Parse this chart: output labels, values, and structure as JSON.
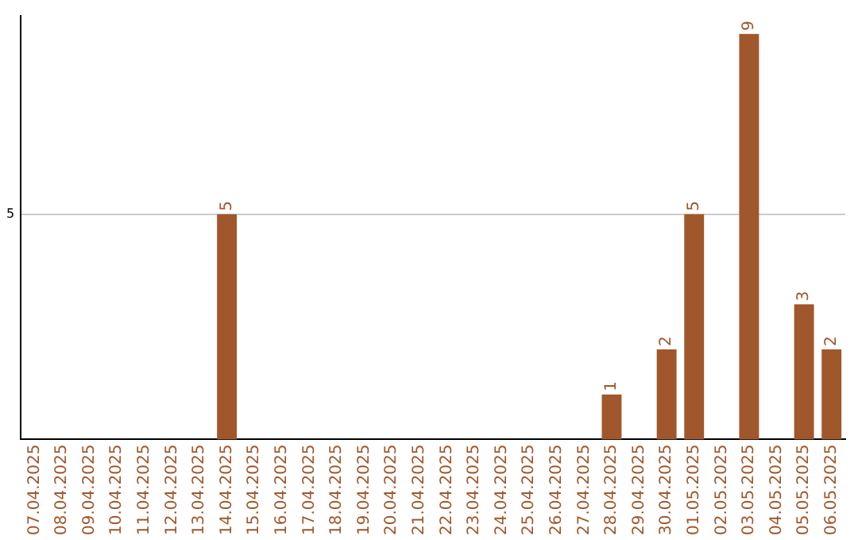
{
  "chart_data": {
    "type": "bar",
    "categories": [
      "07.04.2025",
      "08.04.2025",
      "09.04.2025",
      "10.04.2025",
      "11.04.2025",
      "12.04.2025",
      "13.04.2025",
      "14.04.2025",
      "15.04.2025",
      "16.04.2025",
      "17.04.2025",
      "18.04.2025",
      "19.04.2025",
      "20.04.2025",
      "21.04.2025",
      "22.04.2025",
      "23.04.2025",
      "24.04.2025",
      "25.04.2025",
      "26.04.2025",
      "27.04.2025",
      "28.04.2025",
      "29.04.2025",
      "30.04.2025",
      "01.05.2025",
      "02.05.2025",
      "03.05.2025",
      "04.05.2025",
      "05.05.2025",
      "06.05.2025"
    ],
    "values": [
      0,
      0,
      0,
      0,
      0,
      0,
      0,
      5,
      0,
      0,
      0,
      0,
      0,
      0,
      0,
      0,
      0,
      0,
      0,
      0,
      0,
      1,
      0,
      2,
      5,
      0,
      9,
      0,
      3,
      2
    ],
    "value_labels": [
      null,
      null,
      null,
      null,
      null,
      null,
      null,
      "5",
      null,
      null,
      null,
      null,
      null,
      null,
      null,
      null,
      null,
      null,
      null,
      null,
      null,
      "1",
      null,
      "2",
      "5",
      null,
      "9",
      null,
      "3",
      "2"
    ],
    "color": "#a0572b",
    "ylim": [
      0,
      9.4
    ],
    "yticks": [
      5
    ],
    "grid": "y",
    "legend": false
  }
}
